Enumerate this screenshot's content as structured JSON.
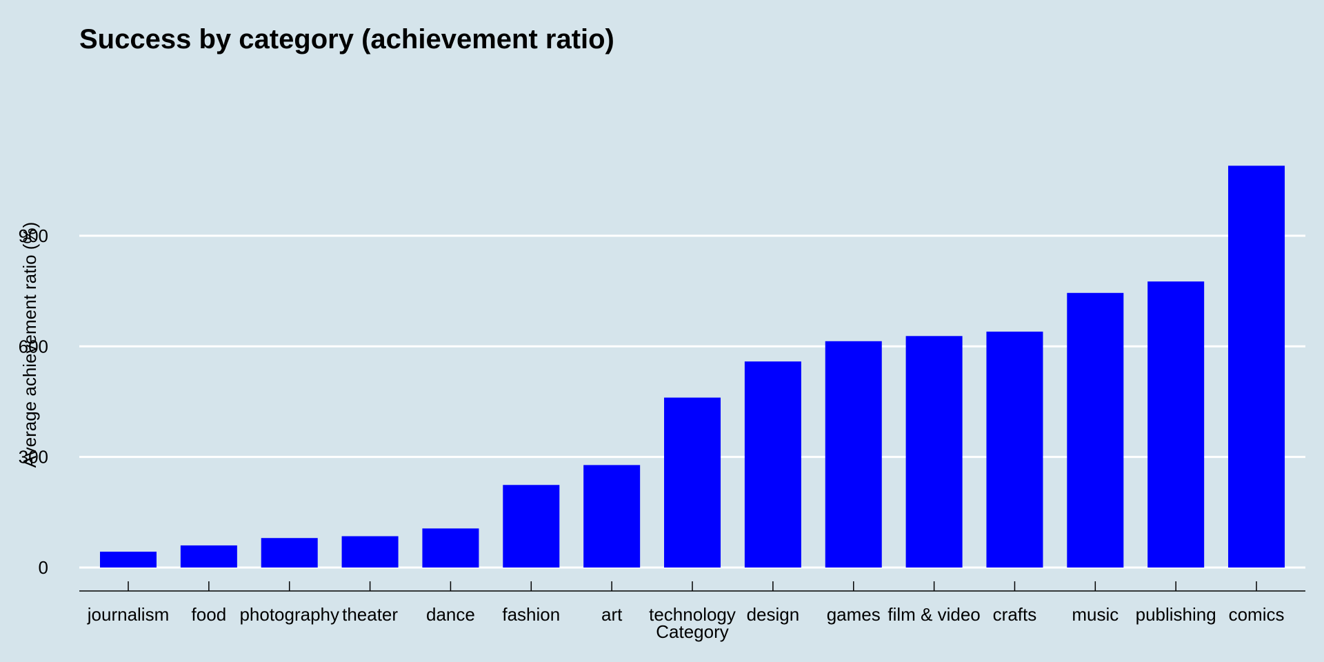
{
  "chart_data": {
    "type": "bar",
    "title": "Success by category (achievement ratio)",
    "xlabel": "Category",
    "ylabel": "Average achievement ratio (%)",
    "categories": [
      "journalism",
      "food",
      "photography",
      "theater",
      "dance",
      "fashion",
      "art",
      "technology",
      "design",
      "games",
      "film & video",
      "crafts",
      "music",
      "publishing",
      "comics"
    ],
    "values": [
      43,
      60,
      80,
      85,
      106,
      224,
      278,
      461,
      559,
      614,
      628,
      640,
      745,
      776,
      1090
    ],
    "ylim": [
      0,
      1125
    ],
    "yticks": [
      0,
      300,
      600,
      900
    ],
    "grid": true,
    "bar_color": "#0000ff",
    "background_color": "#d5e4eb"
  }
}
